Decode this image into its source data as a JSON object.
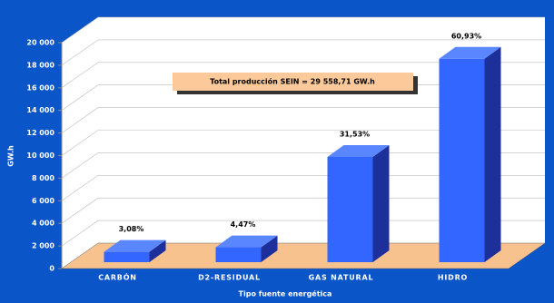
{
  "chart_data": {
    "type": "bar3d",
    "annotation": "Total producción SEIN =  29 558,71 GW.h",
    "x_label": "Tipo fuente energética",
    "y_label": "GW.h",
    "categories": [
      "CARBÓN",
      "D2-RESIDUAL",
      "GAS NATURAL",
      "HIDRO"
    ],
    "values": [
      910,
      1320,
      9320,
      18010
    ],
    "percent_labels": [
      "3,08%",
      "4,47%",
      "31,53%",
      "60,93%"
    ],
    "color": "#3366ff",
    "ylim": [
      0,
      20000
    ],
    "yticks": [
      0,
      {
        "value": 2000,
        "label": "2 000"
      },
      {
        "value": 4000,
        "label": "4 000"
      },
      {
        "value": 6000,
        "label": "6 000"
      },
      {
        "value": 8000,
        "label": "8 000"
      },
      {
        "value": 10000,
        "label": "10 000"
      },
      {
        "value": 12000,
        "label": "12 000"
      },
      {
        "value": 14000,
        "label": "14 000"
      },
      {
        "value": 16000,
        "label": "16 000"
      },
      {
        "value": 18000,
        "label": "18 000"
      },
      {
        "value": 20000,
        "label": "20 000"
      }
    ],
    "grid": true
  }
}
